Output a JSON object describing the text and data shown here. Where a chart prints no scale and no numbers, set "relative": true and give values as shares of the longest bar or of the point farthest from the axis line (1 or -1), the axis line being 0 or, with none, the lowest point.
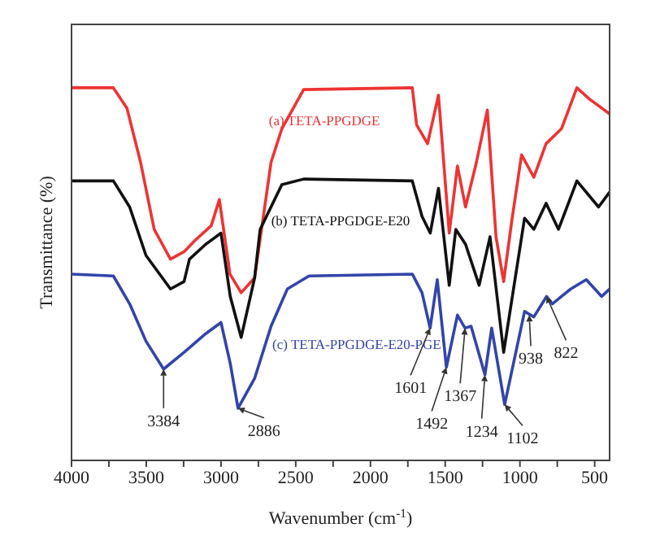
{
  "chart_data": {
    "type": "line",
    "relative": true,
    "xlabel": "Wavenumber (cm$^{-1}$)",
    "ylabel": "Transmittance (%)",
    "xlim": [
      4000,
      400
    ],
    "xticks": [
      4000,
      {
        "value": 3750,
        "label": null
      },
      3500,
      {
        "value": 3250,
        "label": null
      },
      3000,
      {
        "value": 2750,
        "label": null
      },
      2500,
      {
        "value": 2250,
        "label": null
      },
      2000,
      {
        "value": 1750,
        "label": null
      },
      1500,
      {
        "value": 1250,
        "label": null
      },
      1000,
      {
        "value": 750,
        "label": null
      },
      500
    ],
    "grid": false,
    "legend": false,
    "marker": "none",
    "line_style": "solid",
    "series": [
      {
        "name": "(a) TETA-PPGDGE",
        "color": "#ee3333",
        "x": [
          4000,
          3720,
          3629,
          3538,
          3447,
          3338,
          3247,
          3175,
          3065,
          3011,
          2940,
          2865,
          2775,
          2665,
          2593,
          2447,
          1720,
          1691,
          1618,
          1545,
          1473,
          1418,
          1364,
          1291,
          1218,
          1160,
          1109,
          1052,
          989,
          907,
          825,
          722,
          619,
          536,
          400
        ],
        "values": [
          1.0,
          1.0,
          0.945,
          0.8,
          0.62,
          0.54,
          0.56,
          0.59,
          0.63,
          0.7,
          0.5,
          0.45,
          0.49,
          0.8,
          0.89,
          0.995,
          1.0,
          0.9,
          0.85,
          0.98,
          0.61,
          0.79,
          0.68,
          0.8,
          0.94,
          0.6,
          0.48,
          0.65,
          0.82,
          0.76,
          0.85,
          0.89,
          1.0,
          0.97,
          0.93
        ]
      },
      {
        "name": "(b) TETA-PPGDGE-E20",
        "color": "#111111",
        "x": [
          4000,
          3720,
          3611,
          3502,
          3338,
          3247,
          3211,
          3102,
          3000,
          2938,
          2865,
          2775,
          2738,
          2593,
          2447,
          1720,
          1655,
          1600,
          1545,
          1473,
          1429,
          1364,
          1273,
          1200,
          1109,
          969,
          907,
          825,
          742,
          619,
          474,
          400
        ],
        "values": [
          0.75,
          0.75,
          0.68,
          0.55,
          0.46,
          0.48,
          0.54,
          0.58,
          0.61,
          0.44,
          0.33,
          0.49,
          0.62,
          0.74,
          0.755,
          0.75,
          0.655,
          0.61,
          0.73,
          0.47,
          0.62,
          0.58,
          0.47,
          0.6,
          0.29,
          0.65,
          0.62,
          0.69,
          0.62,
          0.75,
          0.68,
          0.72
        ]
      },
      {
        "name": "(c) TETA-PPGDGE-E20-PGE",
        "color": "#3344aa",
        "x": [
          4000,
          3720,
          3611,
          3502,
          3384,
          3247,
          3102,
          3000,
          2938,
          2886,
          2775,
          2665,
          2556,
          2411,
          1720,
          1655,
          1601,
          1553,
          1492,
          1418,
          1367,
          1327,
          1234,
          1189,
          1102,
          969,
          907,
          822,
          783,
          722,
          660,
          556,
          453,
          400
        ],
        "values": [
          0.5,
          0.495,
          0.42,
          0.32,
          0.245,
          0.29,
          0.34,
          0.37,
          0.26,
          0.14,
          0.22,
          0.36,
          0.46,
          0.495,
          0.5,
          0.45,
          0.355,
          0.485,
          0.25,
          0.39,
          0.355,
          0.36,
          0.23,
          0.355,
          0.15,
          0.4,
          0.385,
          0.44,
          0.42,
          0.44,
          0.46,
          0.485,
          0.44,
          0.46
        ]
      }
    ],
    "annotations": [
      {
        "text": "3384",
        "x": 3384,
        "y": 0.245
      },
      {
        "text": "2886",
        "x": 2886,
        "y": 0.14
      },
      {
        "text": "1601",
        "x": 1601,
        "y": 0.355
      },
      {
        "text": "1492",
        "x": 1492,
        "y": 0.25
      },
      {
        "text": "1367",
        "x": 1367,
        "y": 0.355
      },
      {
        "text": "1234",
        "x": 1234,
        "y": 0.23
      },
      {
        "text": "1102",
        "x": 1102,
        "y": 0.15
      },
      {
        "text": "938",
        "x": 938,
        "y": 0.39
      },
      {
        "text": "822",
        "x": 822,
        "y": 0.44
      }
    ]
  }
}
